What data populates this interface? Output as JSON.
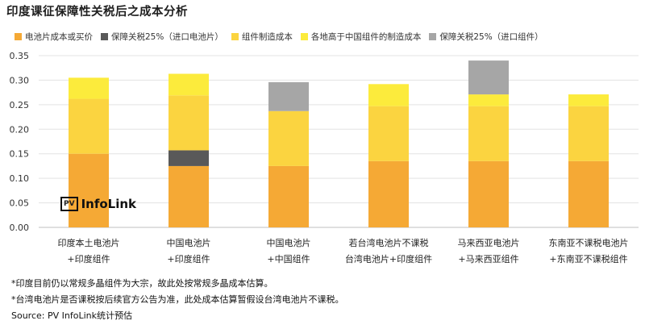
{
  "title": "印度课征保障性关税后之成本分析",
  "logo": {
    "badge": "PV",
    "text": "InfoLink"
  },
  "notes": [
    "*印度目前仍以常规多晶组件为大宗，故此处按常规多晶成本估算。",
    "*台湾电池片是否课税按后续官方公告为准，此处成本估算暂假设台湾电池片不课税。",
    "Source: PV InfoLink统计预估"
  ],
  "chart_data": {
    "type": "bar",
    "stacked": true,
    "title": "印度课征保障性关税后之成本分析",
    "categories": [
      [
        "印度本土电池片",
        "+印度组件"
      ],
      [
        "中国电池片",
        "+印度组件"
      ],
      [
        "中国电池片",
        "+中国组件"
      ],
      [
        "若台湾电池片不课税",
        "台湾电池片+印度组件"
      ],
      [
        "马来西亚电池片",
        "+马来西亚组件"
      ],
      [
        "东南亚不课税电池片",
        "+东南亚不课税组件"
      ]
    ],
    "series": [
      {
        "name": "电池片成本或买价",
        "color": "#F5A935",
        "values": [
          0.15,
          0.125,
          0.125,
          0.135,
          0.135,
          0.135
        ]
      },
      {
        "name": "保障关税25%（进口电池片）",
        "color": "#595959",
        "values": [
          0,
          0.032,
          0,
          0,
          0,
          0
        ]
      },
      {
        "name": "组件制造成本",
        "color": "#FBD440",
        "values": [
          0.112,
          0.112,
          0.112,
          0.112,
          0.112,
          0.112
        ]
      },
      {
        "name": "各地高于中国组件的制造成本",
        "color": "#FCEB3C",
        "values": [
          0.043,
          0.044,
          0,
          0.045,
          0.024,
          0.024
        ]
      },
      {
        "name": "保障关税25%（进口组件）",
        "color": "#A6A6A6",
        "values": [
          0,
          0,
          0.059,
          0,
          0.069,
          0
        ]
      }
    ],
    "ylim": [
      0,
      0.35
    ],
    "yticks": [
      "0.00",
      "0.05",
      "0.10",
      "0.15",
      "0.20",
      "0.25",
      "0.30",
      "0.35"
    ],
    "grid": true,
    "legend_position": "top"
  }
}
